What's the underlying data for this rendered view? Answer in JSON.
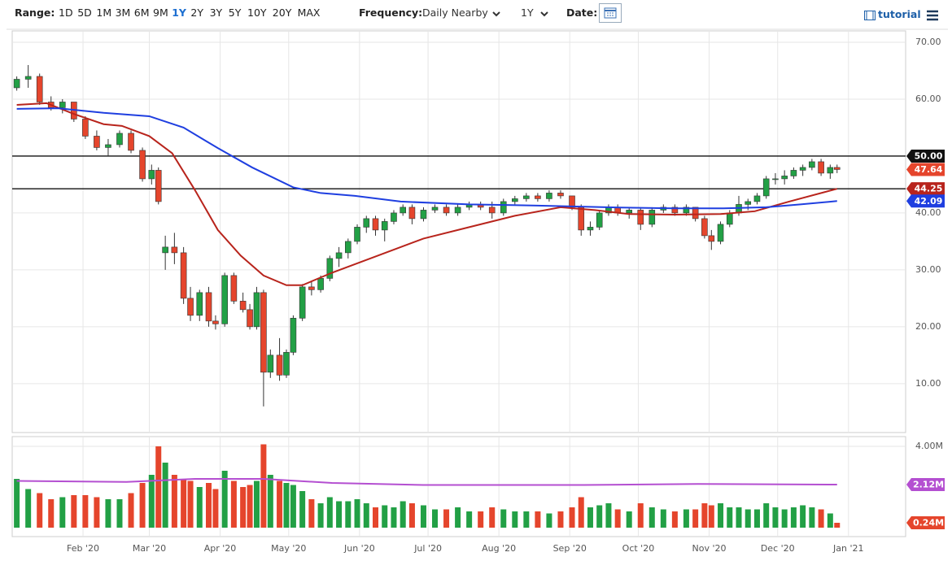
{
  "toolbar": {
    "range_label": "Range:",
    "ranges": [
      "1D",
      "5D",
      "1M",
      "3M",
      "6M",
      "9M",
      "1Y",
      "2Y",
      "3Y",
      "5Y",
      "10Y",
      "20Y",
      "MAX"
    ],
    "selected_range": "1Y",
    "frequency_label": "Frequency:",
    "frequency": "Daily Nearby",
    "period": "1Y",
    "date_label": "Date:",
    "tutorial": "tutorial"
  },
  "chart_data": {
    "type": "candlestick",
    "up_color": "#22a045",
    "down_color": "#e5452c",
    "grid": true,
    "x": [
      2,
      7,
      12,
      17,
      22,
      27,
      32,
      37,
      42,
      47,
      52,
      57,
      61,
      64,
      67,
      71,
      75,
      78,
      82,
      86,
      89,
      93,
      97,
      101,
      104,
      107,
      110,
      113,
      117,
      120,
      123,
      127,
      131,
      135,
      139,
      143,
      147,
      151,
      155,
      159,
      163,
      167,
      171,
      175,
      180,
      185,
      190,
      195,
      200,
      205,
      210,
      215,
      220,
      225,
      230,
      235,
      240,
      245,
      249,
      253,
      257,
      261,
      265,
      270,
      275,
      280,
      285,
      290,
      295,
      299,
      303,
      306,
      310,
      314,
      318,
      322,
      326,
      330,
      334,
      338,
      342,
      346,
      350,
      354,
      358,
      361
    ],
    "open": [
      62,
      63.5,
      64,
      59.5,
      58.5,
      59.5,
      56.5,
      53.5,
      51.5,
      52,
      54,
      51,
      46,
      47.5,
      33,
      34,
      33,
      25,
      22,
      26,
      21,
      20.5,
      29,
      24.5,
      23,
      20,
      26,
      12,
      15,
      11.5,
      15.5,
      21.5,
      27,
      26.5,
      28.5,
      32,
      33,
      35,
      37.5,
      39,
      37,
      38.5,
      40,
      41,
      39,
      40.5,
      41,
      40,
      41,
      41.5,
      41,
      40,
      42,
      42.5,
      43,
      42.5,
      43.5,
      43,
      41,
      37,
      37.5,
      40,
      41,
      40,
      40.5,
      38,
      40.5,
      41,
      40,
      41,
      39,
      36,
      35,
      38,
      40,
      41.5,
      42,
      43,
      46,
      46,
      46.5,
      47.5,
      48,
      49,
      47,
      48
    ],
    "high": [
      64,
      66,
      64.5,
      60.5,
      60,
      59.5,
      57,
      54.5,
      53,
      54.5,
      54.5,
      51.5,
      48.5,
      48,
      36,
      36.5,
      34,
      27,
      26.5,
      27,
      22,
      29.5,
      29.5,
      26,
      24,
      27,
      26.5,
      16,
      18,
      16,
      22,
      27.5,
      28,
      29,
      32.5,
      34,
      35.5,
      38,
      39.5,
      39.5,
      39,
      40.5,
      41.5,
      41.5,
      41,
      41.5,
      41.5,
      41.5,
      42,
      42,
      42,
      42.5,
      43,
      43.5,
      43.5,
      44,
      44,
      43,
      41.5,
      38.5,
      40.5,
      41.5,
      41.5,
      41,
      41,
      41,
      41.5,
      41.5,
      41.5,
      41,
      39.5,
      37,
      38.5,
      40.5,
      43,
      42.5,
      43.5,
      46.5,
      47,
      47.5,
      48,
      48.5,
      49.5,
      49.5,
      48.5,
      48.5
    ],
    "low": [
      61.5,
      62,
      59,
      58,
      57.5,
      56,
      53,
      51,
      50,
      51.5,
      50.5,
      45.5,
      45,
      41.5,
      30,
      31,
      24,
      21,
      21,
      20,
      19.5,
      20,
      24,
      22.5,
      19.5,
      19.5,
      6,
      11,
      10.5,
      11,
      15,
      21,
      25.5,
      26,
      28,
      30.5,
      32,
      34.5,
      36.5,
      36,
      35,
      38,
      39.5,
      38,
      38.5,
      40,
      39.5,
      39.5,
      40.5,
      40.5,
      39,
      39.5,
      41.5,
      42,
      42,
      42,
      42.5,
      40.5,
      36,
      36,
      37,
      39.5,
      39.5,
      39,
      37,
      37.5,
      40,
      39.5,
      39.5,
      38.5,
      35.5,
      33.5,
      34.5,
      37.5,
      39.5,
      40.5,
      41.5,
      42.5,
      45,
      45,
      46,
      46.5,
      47.5,
      46.5,
      46,
      47
    ],
    "close": [
      63.5,
      64,
      59.5,
      58.5,
      59.5,
      56.5,
      53.5,
      51.5,
      52,
      54,
      51,
      46,
      47.5,
      42,
      34,
      33,
      25,
      22,
      26,
      21,
      20.5,
      29,
      24.5,
      23,
      20,
      26,
      12,
      15,
      11.5,
      15.5,
      21.5,
      27,
      26.5,
      28.5,
      32,
      33,
      35,
      37.5,
      39,
      37,
      38.5,
      40,
      41,
      39,
      40.5,
      41,
      40,
      41,
      41.5,
      41,
      40,
      42,
      42.5,
      43,
      42.5,
      43.5,
      43,
      41,
      37,
      37.5,
      40,
      41,
      40,
      40.5,
      38,
      40.5,
      41,
      40,
      41,
      39,
      36,
      35,
      38,
      40,
      41.5,
      42,
      43,
      46,
      46,
      46.5,
      47.5,
      48,
      49,
      47,
      48,
      47.64
    ],
    "xlim": [
      0,
      391
    ],
    "xticks": [
      {
        "value": 31,
        "label": "Feb '20"
      },
      {
        "value": 60,
        "label": "Mar '20"
      },
      {
        "value": 91,
        "label": "Apr '20"
      },
      {
        "value": 121,
        "label": "May '20"
      },
      {
        "value": 152,
        "label": "Jun '20"
      },
      {
        "value": 182,
        "label": "Jul '20"
      },
      {
        "value": 213,
        "label": "Aug '20"
      },
      {
        "value": 244,
        "label": "Sep '20"
      },
      {
        "value": 274,
        "label": "Oct '20"
      },
      {
        "value": 305,
        "label": "Nov '20"
      },
      {
        "value": 335,
        "label": "Dec '20"
      },
      {
        "value": 366,
        "label": "Jan '21"
      }
    ],
    "ylim": [
      1.4,
      72
    ],
    "yticks": [
      {
        "value": 10,
        "label": "10.00"
      },
      {
        "value": 20,
        "label": "20.00"
      },
      {
        "value": 30,
        "label": "30.00"
      },
      {
        "value": 40,
        "label": "40.00"
      },
      {
        "value": 50,
        "label": "50.00"
      },
      {
        "value": 60,
        "label": "60.00"
      },
      {
        "value": 70,
        "label": "70.00"
      }
    ],
    "hlines": [
      50,
      44.25
    ],
    "overlays": [
      {
        "color": "#b8241c",
        "x": [
          2,
          15,
          27,
          40,
          48,
          60,
          70,
          80,
          90,
          100,
          110,
          120,
          127,
          140,
          160,
          180,
          200,
          220,
          240,
          255,
          270,
          290,
          310,
          325,
          340,
          361
        ],
        "values": [
          59,
          59.3,
          57.4,
          55.6,
          55.3,
          53.5,
          50.5,
          44,
          37,
          32.5,
          29,
          27.3,
          27.3,
          29.5,
          32.5,
          35.5,
          37.5,
          39.5,
          41,
          40.5,
          39.8,
          39.7,
          39.8,
          40.3,
          42,
          44.25
        ]
      },
      {
        "color": "#1f3fe0",
        "x": [
          2,
          20,
          40,
          60,
          75,
          90,
          105,
          123,
          135,
          150,
          170,
          200,
          230,
          260,
          290,
          310,
          330,
          345,
          361
        ],
        "values": [
          58.3,
          58.4,
          57.6,
          57,
          55,
          51.4,
          48,
          44.5,
          43.5,
          43,
          42,
          41.5,
          41.3,
          41,
          40.8,
          40.8,
          41,
          41.5,
          42.09
        ]
      }
    ],
    "price_labels": [
      {
        "value": 50,
        "label": "50.00",
        "color": "#111111"
      },
      {
        "value": 47.64,
        "label": "47.64",
        "color": "#e5452c"
      },
      {
        "value": 44.25,
        "label": "44.25",
        "color": "#b8241c"
      },
      {
        "value": 42.09,
        "label": "42.09",
        "color": "#1f3fe0"
      }
    ],
    "volume": {
      "ylim": [
        -0.44,
        4.48
      ],
      "yticks": [
        {
          "value": 4,
          "label": "4.00M"
        }
      ],
      "values": [
        2.4,
        1.9,
        1.7,
        1.4,
        1.5,
        1.6,
        1.6,
        1.5,
        1.4,
        1.4,
        1.7,
        2.2,
        2.6,
        4.0,
        3.2,
        2.6,
        2.4,
        2.3,
        2.0,
        2.2,
        1.9,
        2.8,
        2.3,
        2.0,
        2.1,
        2.3,
        4.1,
        2.6,
        2.3,
        2.2,
        2.1,
        1.8,
        1.4,
        1.2,
        1.5,
        1.3,
        1.3,
        1.4,
        1.2,
        1.0,
        1.1,
        1.0,
        1.3,
        1.2,
        1.1,
        0.9,
        0.9,
        1.0,
        0.8,
        0.8,
        1.0,
        0.9,
        0.8,
        0.8,
        0.8,
        0.7,
        0.8,
        1.0,
        1.5,
        1.0,
        1.1,
        1.2,
        0.9,
        0.8,
        1.2,
        1.0,
        0.9,
        0.8,
        0.9,
        0.9,
        1.2,
        1.1,
        1.2,
        1.0,
        1.0,
        0.9,
        0.9,
        1.2,
        1.0,
        0.9,
        1.0,
        1.1,
        1.0,
        0.9,
        0.7,
        0.24
      ],
      "average": {
        "color": "#b44fd1",
        "x": [
          2,
          50,
          80,
          110,
          140,
          180,
          250,
          300,
          361
        ],
        "values": [
          2.3,
          2.25,
          2.4,
          2.4,
          2.2,
          2.1,
          2.1,
          2.15,
          2.12
        ]
      },
      "labels": [
        {
          "value": 2.12,
          "label": "2.12M",
          "color": "#b44fd1"
        },
        {
          "value": 0.24,
          "label": "0.24M",
          "color": "#e5452c"
        }
      ]
    }
  }
}
